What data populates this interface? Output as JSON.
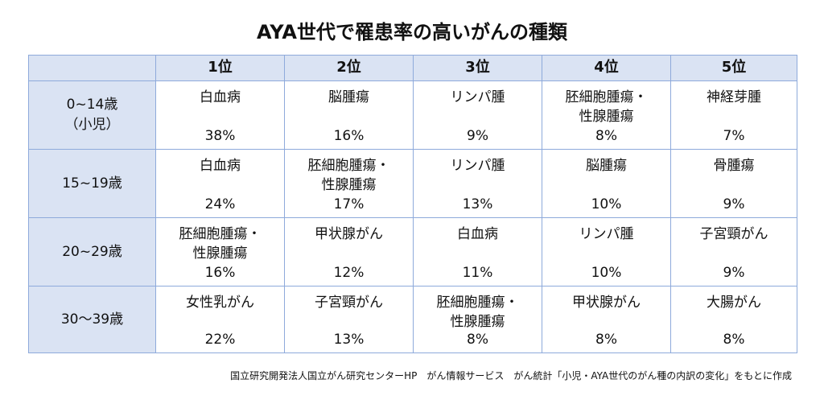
{
  "title": "AYA世代で罹患率の高いがんの種類",
  "table": {
    "header": [
      "1位",
      "2位",
      "3位",
      "4位",
      "5位"
    ],
    "rows": [
      {
        "label": [
          "0~14歳",
          "（小児）"
        ],
        "cells": [
          {
            "name": [
              "白血病"
            ],
            "percent": "38%"
          },
          {
            "name": [
              "脳腫瘍"
            ],
            "percent": "16%"
          },
          {
            "name": [
              "リンパ腫"
            ],
            "percent": "9%"
          },
          {
            "name": [
              "胚細胞腫瘍・",
              "性腺腫瘍"
            ],
            "percent": "8%"
          },
          {
            "name": [
              "神経芽腫"
            ],
            "percent": "7%"
          }
        ]
      },
      {
        "label": [
          "15~19歳"
        ],
        "cells": [
          {
            "name": [
              "白血病"
            ],
            "percent": "24%"
          },
          {
            "name": [
              "胚細胞腫瘍・",
              "性腺腫瘍"
            ],
            "percent": "17%"
          },
          {
            "name": [
              "リンパ腫"
            ],
            "percent": "13%"
          },
          {
            "name": [
              "脳腫瘍"
            ],
            "percent": "10%"
          },
          {
            "name": [
              "骨腫瘍"
            ],
            "percent": "9%"
          }
        ]
      },
      {
        "label": [
          "20~29歳"
        ],
        "cells": [
          {
            "name": [
              "胚細胞腫瘍・",
              "性腺腫瘍"
            ],
            "percent": "16%"
          },
          {
            "name": [
              "甲状腺がん"
            ],
            "percent": "12%"
          },
          {
            "name": [
              "白血病"
            ],
            "percent": "11%"
          },
          {
            "name": [
              "リンパ腫"
            ],
            "percent": "10%"
          },
          {
            "name": [
              "子宮頸がん"
            ],
            "percent": "9%"
          }
        ]
      },
      {
        "label": [
          "30～39歳"
        ],
        "cells": [
          {
            "name": [
              "女性乳がん"
            ],
            "percent": "22%"
          },
          {
            "name": [
              "子宮頸がん"
            ],
            "percent": "13%"
          },
          {
            "name": [
              "胚細胞腫瘍・",
              "性腺腫瘍"
            ],
            "percent": "8%"
          },
          {
            "name": [
              "甲状腺がん"
            ],
            "percent": "8%"
          },
          {
            "name": [
              "大腸がん"
            ],
            "percent": "8%"
          }
        ]
      }
    ]
  },
  "source": "国立研究開発法人国立がん研究センターHP　がん情報サービス　がん統計「小児・AYA世代のがん種の内訳の変化」をもとに作成"
}
